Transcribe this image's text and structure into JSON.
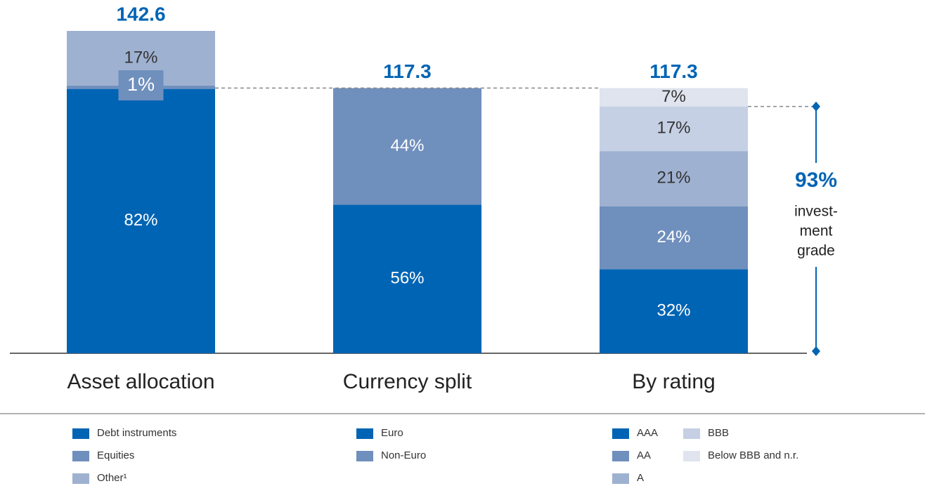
{
  "chart_data": {
    "type": "stacked_bar",
    "bars": [
      {
        "category": "Asset allocation",
        "total": 142.6,
        "segments": [
          {
            "name": "Debt instruments",
            "color": "#0064b4",
            "value": 82,
            "value_label": "82%"
          },
          {
            "name": "Equities",
            "color": "#6f8fbd",
            "value": 1,
            "value_label": "1%"
          },
          {
            "name": "Other¹",
            "color": "#9fb1d1",
            "value": 17,
            "value_label": "17%"
          }
        ]
      },
      {
        "category": "Currency split",
        "total": 117.3,
        "segments": [
          {
            "name": "Euro",
            "color": "#0064b4",
            "value": 56,
            "value_label": "56%"
          },
          {
            "name": "Non-Euro",
            "color": "#6f8fbd",
            "value": 44,
            "value_label": "44%"
          }
        ]
      },
      {
        "category": "By rating",
        "total": 117.3,
        "segments": [
          {
            "name": "AAA",
            "color": "#0064b4",
            "value": 32,
            "value_label": "32%"
          },
          {
            "name": "AA",
            "color": "#6f8fbd",
            "value": 24,
            "value_label": "24%"
          },
          {
            "name": "A",
            "color": "#9fb1d1",
            "value": 21,
            "value_label": "21%"
          },
          {
            "name": "BBB",
            "color": "#c5d0e4",
            "value": 17,
            "value_label": "17%"
          },
          {
            "name": "Below BBB and n.r.",
            "color": "#dfe4ef",
            "value": 7,
            "value_label": "7%"
          }
        ]
      }
    ],
    "annotation": {
      "value": 93,
      "label": "93%",
      "text": [
        "invest-",
        "ment",
        "grade"
      ]
    }
  }
}
